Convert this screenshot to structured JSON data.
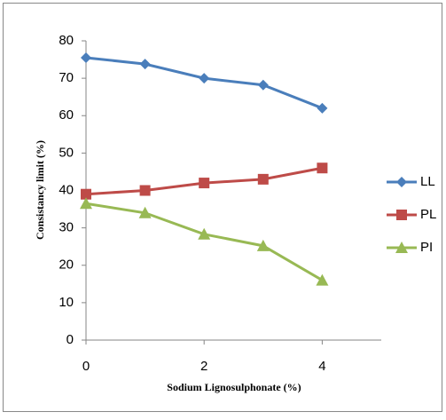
{
  "chart_data": {
    "type": "line",
    "x_label": "Sodium Lignosulphonate (%)",
    "y_label": "Consistancy limit (%)",
    "x": [
      0,
      1,
      2,
      3,
      4
    ],
    "series": [
      {
        "name": "LL",
        "color": "#4a7ebb",
        "marker": "diamond",
        "values": [
          75.5,
          73.8,
          70,
          68.2,
          62
        ]
      },
      {
        "name": "PL",
        "color": "#be4b48",
        "marker": "square",
        "values": [
          39,
          40,
          42,
          43,
          46
        ]
      },
      {
        "name": "PI",
        "color": "#98b954",
        "marker": "triangle",
        "values": [
          36.5,
          34,
          28.3,
          25.2,
          16
        ]
      }
    ],
    "xlim": [
      0,
      5
    ],
    "xticks": [
      0,
      2,
      4
    ],
    "ylim": [
      0,
      80
    ],
    "yticks": [
      0,
      10,
      20,
      30,
      40,
      50,
      60,
      70,
      80
    ],
    "grid": false,
    "legend": "right"
  }
}
